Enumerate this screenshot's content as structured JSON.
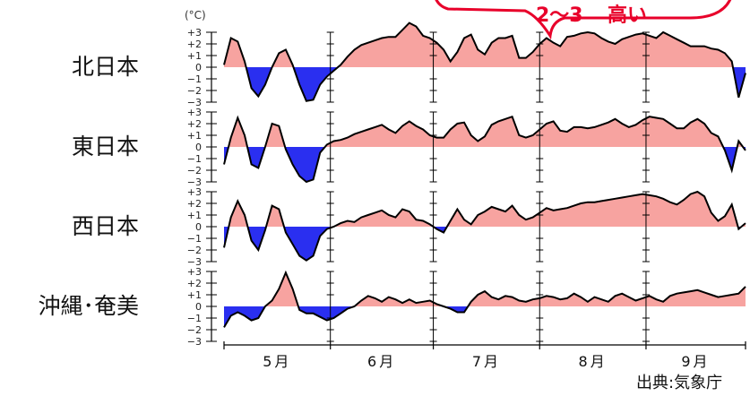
{
  "unit_label": "(°C)",
  "source_label": "出典:気象庁",
  "callout": {
    "range": "2～3",
    "word": "高い"
  },
  "colors": {
    "warm": "#f7a3a0",
    "cold": "#2a2ff0",
    "line": "#000000",
    "callout": "#e8002a"
  },
  "chart_data": {
    "type": "area",
    "months": [
      "5月",
      "6月",
      "7月",
      "8月",
      "9月"
    ],
    "ylim": [
      -3,
      3
    ],
    "y_ticks": [
      "+3",
      "+2",
      "+1",
      "0",
      "−1",
      "−2",
      "−3"
    ],
    "grid": false,
    "series": [
      {
        "name": "北日本",
        "x": [
          1,
          3,
          5,
          7,
          9,
          11,
          13,
          15,
          17,
          19,
          21,
          23,
          25,
          27,
          29,
          31,
          33,
          35,
          37,
          39,
          41,
          43,
          45,
          47,
          49,
          51,
          53,
          55,
          57,
          59,
          61,
          63,
          65,
          67,
          69,
          71,
          73,
          75,
          77,
          79,
          81,
          83,
          85,
          87,
          89,
          91,
          93,
          95,
          97,
          99,
          101,
          103,
          105,
          107,
          109,
          111,
          113,
          115,
          117,
          119,
          121,
          123,
          125,
          127,
          129,
          131,
          133,
          135,
          137,
          139,
          141,
          143,
          145,
          147,
          149,
          151,
          153
        ],
        "y": [
          0.2,
          2.5,
          2.2,
          0.5,
          -1.8,
          -2.5,
          -1.5,
          0,
          1.2,
          1.5,
          0.2,
          -1.5,
          -2.9,
          -2.8,
          -1.5,
          -0.8,
          -0.3,
          0.2,
          0.9,
          1.5,
          1.9,
          2.1,
          2.3,
          2.5,
          2.6,
          2.6,
          3.2,
          3.8,
          3.5,
          2.7,
          2.5,
          2.1,
          1.5,
          0.5,
          1.3,
          2.5,
          2.8,
          1.5,
          1.1,
          2.1,
          2.5,
          2.5,
          2.7,
          0.8,
          0.8,
          1.3,
          2.0,
          2.5,
          2.1,
          1.8,
          2.6,
          2.7,
          2.9,
          3.0,
          2.9,
          2.5,
          2.2,
          2.0,
          2.4,
          2.6,
          2.8,
          2.9,
          2.7,
          2.5,
          3.0,
          2.7,
          2.4,
          2.1,
          1.8,
          1.8,
          1.8,
          1.6,
          1.5,
          1.2,
          0.5,
          -2.6,
          -0.5
        ]
      },
      {
        "name": "東日本",
        "x": [
          1,
          3,
          5,
          7,
          9,
          11,
          13,
          15,
          17,
          19,
          21,
          23,
          25,
          27,
          29,
          31,
          33,
          35,
          37,
          39,
          41,
          43,
          45,
          47,
          49,
          51,
          53,
          55,
          57,
          59,
          61,
          63,
          65,
          67,
          69,
          71,
          73,
          75,
          77,
          79,
          81,
          83,
          85,
          87,
          89,
          91,
          93,
          95,
          97,
          99,
          101,
          103,
          105,
          107,
          109,
          111,
          113,
          115,
          117,
          119,
          121,
          123,
          125,
          127,
          129,
          131,
          133,
          135,
          137,
          139,
          141,
          143,
          145,
          147,
          149,
          151,
          153
        ],
        "y": [
          -1.5,
          0.8,
          2.5,
          1.0,
          -1.5,
          -1.8,
          0,
          2.0,
          1.8,
          -0.2,
          -1.5,
          -2.5,
          -3.0,
          -2.8,
          -0.5,
          0.2,
          0.5,
          0.6,
          0.8,
          1.1,
          1.3,
          1.5,
          1.7,
          1.9,
          1.5,
          1.2,
          1.8,
          2.2,
          1.8,
          1.5,
          1.0,
          0.8,
          0.8,
          1.5,
          2.0,
          2.1,
          1.0,
          0.5,
          0.9,
          1.9,
          2.2,
          2.4,
          2.6,
          1.0,
          0.8,
          1.0,
          1.5,
          2.0,
          2.2,
          1.4,
          1.3,
          1.7,
          1.7,
          1.6,
          1.7,
          1.9,
          2.1,
          2.4,
          2.0,
          1.7,
          1.9,
          2.3,
          2.6,
          2.5,
          2.4,
          2.0,
          1.6,
          1.6,
          2.1,
          2.4,
          2.0,
          1.2,
          0.9,
          -0.3,
          -2.0,
          0.5,
          -0.3
        ]
      },
      {
        "name": "西日本",
        "x": [
          1,
          3,
          5,
          7,
          9,
          11,
          13,
          15,
          17,
          19,
          21,
          23,
          25,
          27,
          29,
          31,
          33,
          35,
          37,
          39,
          41,
          43,
          45,
          47,
          49,
          51,
          53,
          55,
          57,
          59,
          61,
          63,
          65,
          67,
          69,
          71,
          73,
          75,
          77,
          79,
          81,
          83,
          85,
          87,
          89,
          91,
          93,
          95,
          97,
          99,
          101,
          103,
          105,
          107,
          109,
          111,
          113,
          115,
          117,
          119,
          121,
          123,
          125,
          127,
          129,
          131,
          133,
          135,
          137,
          139,
          141,
          143,
          145,
          147,
          149,
          151,
          153
        ],
        "y": [
          -1.8,
          0.8,
          2.2,
          1.0,
          -1.2,
          -2.0,
          -0.3,
          1.8,
          1.5,
          -0.5,
          -1.5,
          -2.5,
          -2.9,
          -2.5,
          -0.8,
          -0.2,
          0,
          0.3,
          0.5,
          0.4,
          0.8,
          1.0,
          1.2,
          1.4,
          1.0,
          0.8,
          1.5,
          1.3,
          0.6,
          0.5,
          0.2,
          -0.2,
          -0.5,
          0.5,
          1.5,
          0.6,
          0.2,
          1.0,
          1.3,
          1.7,
          1.5,
          1.3,
          1.8,
          1.0,
          0.6,
          0.8,
          1.2,
          1.6,
          1.4,
          1.5,
          1.6,
          1.8,
          2.0,
          2.1,
          2.1,
          2.2,
          2.3,
          2.4,
          2.5,
          2.6,
          2.7,
          2.8,
          2.7,
          2.6,
          2.4,
          2.1,
          1.9,
          2.3,
          2.8,
          3.0,
          2.6,
          1.2,
          0.5,
          0.9,
          1.9,
          -0.2,
          0.3
        ]
      },
      {
        "name": "沖縄･奄美",
        "x": [
          1,
          3,
          5,
          7,
          9,
          11,
          13,
          15,
          17,
          19,
          21,
          23,
          25,
          27,
          29,
          31,
          33,
          35,
          37,
          39,
          41,
          43,
          45,
          47,
          49,
          51,
          53,
          55,
          57,
          59,
          61,
          63,
          65,
          67,
          69,
          71,
          73,
          75,
          77,
          79,
          81,
          83,
          85,
          87,
          89,
          91,
          93,
          95,
          97,
          99,
          101,
          103,
          105,
          107,
          109,
          111,
          113,
          115,
          117,
          119,
          121,
          123,
          125,
          127,
          129,
          131,
          133,
          135,
          137,
          139,
          141,
          143,
          145,
          147,
          149,
          151,
          153
        ],
        "y": [
          -1.8,
          -0.8,
          -0.5,
          -0.8,
          -1.2,
          -1.0,
          0,
          0.5,
          1.5,
          2.9,
          1.5,
          -0.3,
          -0.6,
          -0.6,
          -0.9,
          -1.2,
          -1.0,
          -0.6,
          -0.2,
          0,
          0.5,
          0.9,
          0.7,
          0.4,
          0.8,
          0.6,
          0.3,
          0.6,
          0.3,
          0.4,
          0.5,
          0.2,
          0.0,
          -0.2,
          -0.5,
          -0.5,
          0.4,
          1.0,
          1.3,
          0.8,
          0.6,
          0.9,
          0.8,
          0.5,
          0.4,
          0.6,
          0.7,
          0.9,
          0.8,
          0.6,
          0.7,
          1.1,
          0.8,
          0.4,
          0.8,
          0.6,
          0.4,
          0.9,
          1.1,
          0.8,
          0.5,
          0.7,
          0.9,
          0.6,
          0.4,
          0.9,
          1.1,
          1.2,
          1.3,
          1.4,
          1.2,
          1.0,
          0.8,
          0.9,
          1.0,
          1.1,
          1.7
        ]
      }
    ]
  }
}
